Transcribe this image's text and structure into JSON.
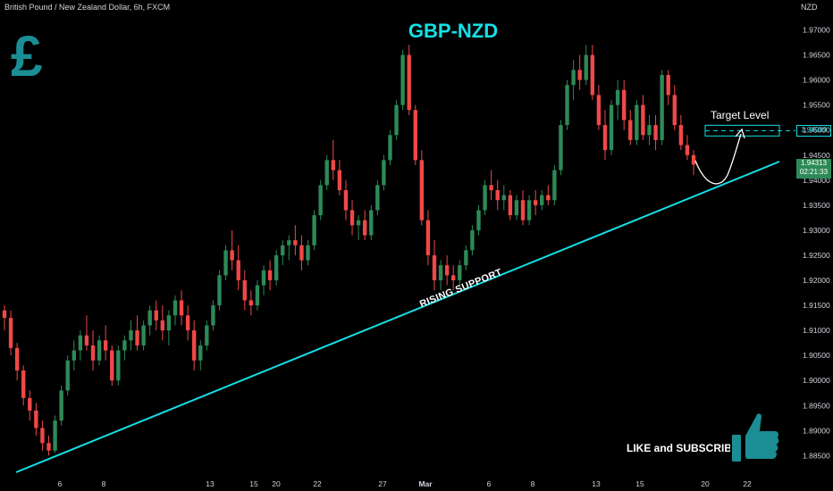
{
  "header": {
    "symbol_line": "British Pound / New Zealand Dollar, 6h, FXCM",
    "currency": "NZD"
  },
  "title": "GBP-NZD",
  "logo_glyph": "£",
  "annotations": {
    "support_label": "RISING SUPPORT",
    "target_label": "Target Level",
    "cta": "LIKE and SUBSCRIBE",
    "thumb_icon": "thumbs-up-icon"
  },
  "price_tags": {
    "target": "1.94989",
    "current": "1.94313",
    "countdown": "02:21:33"
  },
  "colors": {
    "background": "#000000",
    "up": "#2d8a57",
    "down": "#f04848",
    "accent": "#14e0e6",
    "logo": "#1b8e94"
  },
  "chart_data": {
    "type": "candlestick",
    "title": "GBP-NZD",
    "ylabel": "NZD",
    "ylim": [
      1.88,
      1.975
    ],
    "y_ticks": [
      "1.97000",
      "1.96500",
      "1.96000",
      "1.95500",
      "1.95000",
      "1.94500",
      "1.94000",
      "1.93500",
      "1.93000",
      "1.92500",
      "1.92000",
      "1.91500",
      "1.91000",
      "1.90500",
      "1.90000",
      "1.89500",
      "1.89000",
      "1.88500"
    ],
    "x_ticks": [
      "6",
      "8",
      "13",
      "15",
      "20",
      "22",
      "27",
      "Mar",
      "6",
      "8",
      "13",
      "15",
      "20",
      "22"
    ],
    "target_level": 1.94989,
    "last_price": 1.94313,
    "support_line": {
      "start": 1.886,
      "end": 1.9447
    },
    "ohlc": [
      [
        1.914,
        1.915,
        1.91,
        1.9125
      ],
      [
        1.9125,
        1.914,
        1.905,
        1.9065
      ],
      [
        1.9065,
        1.9075,
        1.9,
        1.902
      ],
      [
        1.902,
        1.903,
        1.895,
        1.8965
      ],
      [
        1.8965,
        1.898,
        1.892,
        1.894
      ],
      [
        1.894,
        1.8955,
        1.889,
        1.8905
      ],
      [
        1.8905,
        1.892,
        1.886,
        1.8875
      ],
      [
        1.8875,
        1.889,
        1.885,
        1.886
      ],
      [
        1.886,
        1.893,
        1.8855,
        1.892
      ],
      [
        1.892,
        1.899,
        1.891,
        1.898
      ],
      [
        1.898,
        1.905,
        1.897,
        1.904
      ],
      [
        1.904,
        1.908,
        1.902,
        1.906
      ],
      [
        1.906,
        1.91,
        1.904,
        1.909
      ],
      [
        1.909,
        1.913,
        1.906,
        1.907
      ],
      [
        1.907,
        1.91,
        1.902,
        1.904
      ],
      [
        1.904,
        1.909,
        1.903,
        1.908
      ],
      [
        1.908,
        1.911,
        1.904,
        1.906
      ],
      [
        1.906,
        1.907,
        1.899,
        1.9
      ],
      [
        1.9,
        1.907,
        1.899,
        1.906
      ],
      [
        1.906,
        1.909,
        1.904,
        1.908
      ],
      [
        1.908,
        1.912,
        1.906,
        1.91
      ],
      [
        1.91,
        1.913,
        1.906,
        1.907
      ],
      [
        1.907,
        1.912,
        1.906,
        1.911
      ],
      [
        1.911,
        1.915,
        1.909,
        1.914
      ],
      [
        1.914,
        1.916,
        1.91,
        1.912
      ],
      [
        1.912,
        1.915,
        1.908,
        1.91
      ],
      [
        1.91,
        1.914,
        1.907,
        1.913
      ],
      [
        1.913,
        1.917,
        1.911,
        1.916
      ],
      [
        1.916,
        1.918,
        1.911,
        1.913
      ],
      [
        1.913,
        1.915,
        1.908,
        1.91
      ],
      [
        1.91,
        1.912,
        1.902,
        1.904
      ],
      [
        1.904,
        1.908,
        1.902,
        1.907
      ],
      [
        1.907,
        1.912,
        1.906,
        1.911
      ],
      [
        1.911,
        1.916,
        1.91,
        1.915
      ],
      [
        1.915,
        1.922,
        1.914,
        1.921
      ],
      [
        1.921,
        1.927,
        1.92,
        1.926
      ],
      [
        1.926,
        1.93,
        1.922,
        1.924
      ],
      [
        1.924,
        1.927,
        1.918,
        1.92
      ],
      [
        1.92,
        1.922,
        1.914,
        1.916
      ],
      [
        1.916,
        1.918,
        1.913,
        1.915
      ],
      [
        1.915,
        1.92,
        1.914,
        1.919
      ],
      [
        1.919,
        1.923,
        1.917,
        1.922
      ],
      [
        1.922,
        1.924,
        1.918,
        1.92
      ],
      [
        1.92,
        1.926,
        1.919,
        1.925
      ],
      [
        1.925,
        1.928,
        1.923,
        1.927
      ],
      [
        1.927,
        1.929,
        1.924,
        1.928
      ],
      [
        1.928,
        1.931,
        1.925,
        1.927
      ],
      [
        1.927,
        1.929,
        1.922,
        1.924
      ],
      [
        1.924,
        1.928,
        1.923,
        1.927
      ],
      [
        1.927,
        1.934,
        1.926,
        1.933
      ],
      [
        1.933,
        1.94,
        1.932,
        1.939
      ],
      [
        1.939,
        1.945,
        1.938,
        1.944
      ],
      [
        1.944,
        1.948,
        1.94,
        1.942
      ],
      [
        1.942,
        1.944,
        1.937,
        1.938
      ],
      [
        1.938,
        1.94,
        1.932,
        1.934
      ],
      [
        1.934,
        1.936,
        1.929,
        1.931
      ],
      [
        1.931,
        1.933,
        1.928,
        1.932
      ],
      [
        1.932,
        1.934,
        1.928,
        1.929
      ],
      [
        1.929,
        1.935,
        1.928,
        1.934
      ],
      [
        1.934,
        1.94,
        1.933,
        1.939
      ],
      [
        1.939,
        1.945,
        1.938,
        1.944
      ],
      [
        1.944,
        1.95,
        1.943,
        1.949
      ],
      [
        1.949,
        1.956,
        1.948,
        1.955
      ],
      [
        1.955,
        1.966,
        1.954,
        1.965
      ],
      [
        1.965,
        1.967,
        1.953,
        1.954
      ],
      [
        1.954,
        1.955,
        1.943,
        1.944
      ],
      [
        1.944,
        1.946,
        1.931,
        1.932
      ],
      [
        1.932,
        1.934,
        1.923,
        1.925
      ],
      [
        1.925,
        1.928,
        1.918,
        1.92
      ],
      [
        1.92,
        1.924,
        1.918,
        1.923
      ],
      [
        1.923,
        1.925,
        1.919,
        1.921
      ],
      [
        1.921,
        1.923,
        1.918,
        1.92
      ],
      [
        1.92,
        1.924,
        1.919,
        1.923
      ],
      [
        1.923,
        1.927,
        1.922,
        1.926
      ],
      [
        1.926,
        1.931,
        1.925,
        1.93
      ],
      [
        1.93,
        1.935,
        1.929,
        1.934
      ],
      [
        1.934,
        1.94,
        1.933,
        1.939
      ],
      [
        1.939,
        1.942,
        1.936,
        1.938
      ],
      [
        1.938,
        1.94,
        1.934,
        1.936
      ],
      [
        1.936,
        1.939,
        1.934,
        1.937
      ],
      [
        1.937,
        1.938,
        1.932,
        1.933
      ],
      [
        1.933,
        1.937,
        1.932,
        1.936
      ],
      [
        1.936,
        1.938,
        1.931,
        1.932
      ],
      [
        1.932,
        1.937,
        1.931,
        1.936
      ],
      [
        1.936,
        1.938,
        1.933,
        1.935
      ],
      [
        1.935,
        1.938,
        1.934,
        1.937
      ],
      [
        1.937,
        1.939,
        1.935,
        1.936
      ],
      [
        1.936,
        1.943,
        1.935,
        1.942
      ],
      [
        1.942,
        1.952,
        1.941,
        1.951
      ],
      [
        1.951,
        1.96,
        1.95,
        1.959
      ],
      [
        1.959,
        1.964,
        1.956,
        1.962
      ],
      [
        1.962,
        1.965,
        1.958,
        1.96
      ],
      [
        1.96,
        1.967,
        1.959,
        1.965
      ],
      [
        1.965,
        1.967,
        1.956,
        1.957
      ],
      [
        1.957,
        1.959,
        1.95,
        1.951
      ],
      [
        1.951,
        1.954,
        1.944,
        1.946
      ],
      [
        1.946,
        1.956,
        1.945,
        1.955
      ],
      [
        1.955,
        1.96,
        1.952,
        1.958
      ],
      [
        1.958,
        1.96,
        1.95,
        1.952
      ],
      [
        1.952,
        1.954,
        1.947,
        1.948
      ],
      [
        1.948,
        1.956,
        1.947,
        1.955
      ],
      [
        1.955,
        1.957,
        1.948,
        1.949
      ],
      [
        1.949,
        1.953,
        1.947,
        1.951
      ],
      [
        1.951,
        1.953,
        1.946,
        1.948
      ],
      [
        1.948,
        1.962,
        1.947,
        1.961
      ],
      [
        1.961,
        1.962,
        1.955,
        1.957
      ],
      [
        1.957,
        1.959,
        1.95,
        1.951
      ],
      [
        1.951,
        1.953,
        1.946,
        1.947
      ],
      [
        1.947,
        1.949,
        1.944,
        1.945
      ],
      [
        1.945,
        1.946,
        1.941,
        1.9431
      ]
    ]
  }
}
